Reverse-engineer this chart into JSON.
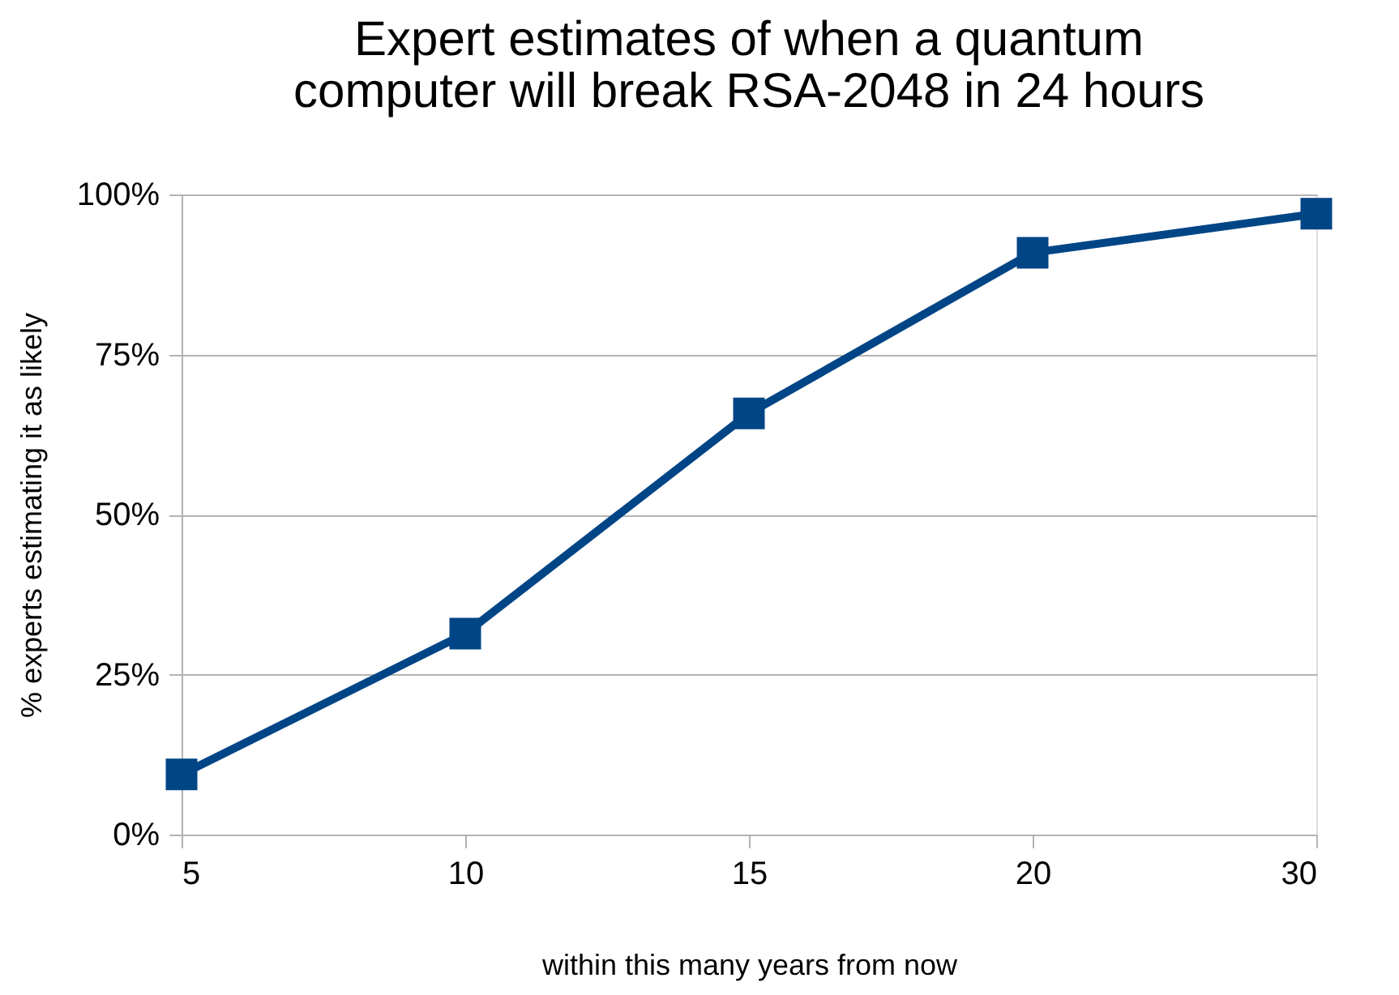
{
  "chart_data": {
    "type": "line",
    "title": [
      "Expert estimates of when a quantum",
      "computer will break RSA-2048 in 24 hours"
    ],
    "xlabel": "within this many years from now",
    "ylabel": "% experts estimating it as likely",
    "categories": [
      "5",
      "10",
      "15",
      "20",
      "30"
    ],
    "series": [
      {
        "color": "#004586",
        "values": [
          9.4,
          31.4,
          65.8,
          90.9,
          97.0
        ]
      }
    ],
    "ylim": [
      0,
      100
    ],
    "yticks": [
      {
        "value": 0,
        "label": "0%"
      },
      {
        "value": 25,
        "label": "25%"
      },
      {
        "value": 50,
        "label": "50%"
      },
      {
        "value": 75,
        "label": "75%"
      },
      {
        "value": 100,
        "label": "100%"
      }
    ],
    "grid": "y",
    "marker": "square",
    "line_style": "solid"
  }
}
